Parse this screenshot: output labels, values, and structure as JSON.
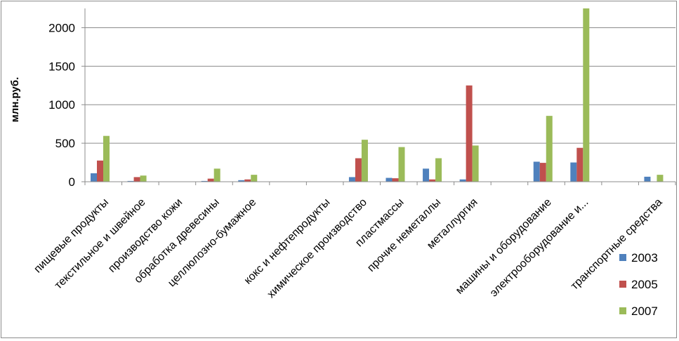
{
  "chart_data": {
    "type": "bar",
    "title": "",
    "xlabel": "",
    "ylabel": "млн.руб.",
    "ylim": [
      0,
      2250
    ],
    "yticks": [
      0,
      500,
      1000,
      1500,
      2000
    ],
    "grid": true,
    "legend_position": "right",
    "categories": [
      "пищевые продукты",
      "текстильное и швейное",
      "производство кожи",
      "обработка древесины",
      "целлюлозно-бумажное",
      "",
      "кокс и нефтепродукты",
      "химическое производство",
      "пластмассы",
      "прочие неметаллы",
      "металлургия",
      "",
      "машины и оборудование",
      "электрооборудование и...",
      "",
      "транспортные средства"
    ],
    "series": [
      {
        "name": "2003",
        "color": "#4f81bd",
        "values": [
          110,
          10,
          0,
          10,
          20,
          0,
          0,
          60,
          50,
          170,
          30,
          0,
          260,
          250,
          0,
          65
        ]
      },
      {
        "name": "2005",
        "color": "#c0504d",
        "values": [
          275,
          60,
          0,
          40,
          30,
          0,
          0,
          305,
          45,
          30,
          1250,
          0,
          245,
          440,
          0,
          0
        ]
      },
      {
        "name": "2007",
        "color": "#9bbb59",
        "values": [
          595,
          80,
          0,
          170,
          90,
          0,
          0,
          545,
          450,
          305,
          470,
          0,
          855,
          2250,
          0,
          90
        ]
      }
    ]
  }
}
